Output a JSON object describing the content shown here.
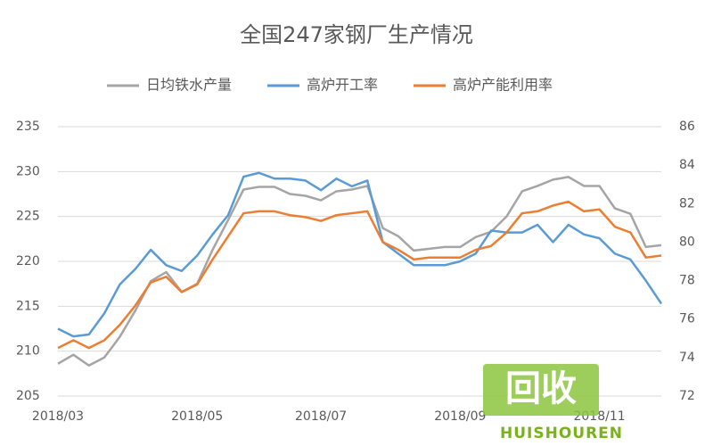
{
  "chart_data": {
    "type": "line",
    "title": "全国247家钢厂生产情况",
    "categories": [
      "2018/03",
      null,
      null,
      null,
      null,
      null,
      null,
      null,
      null,
      "2018/05",
      null,
      null,
      null,
      null,
      null,
      null,
      null,
      "2018/07",
      null,
      null,
      null,
      null,
      null,
      null,
      null,
      null,
      "2018/09",
      null,
      null,
      null,
      null,
      null,
      null,
      null,
      null,
      "2018/11",
      null,
      null,
      null,
      null
    ],
    "ylim": [
      205,
      235
    ],
    "yticks": [
      205,
      210,
      215,
      220,
      225,
      230,
      235
    ],
    "y2lim": [
      72,
      86
    ],
    "y2ticks": [
      72,
      74,
      76,
      78,
      80,
      82,
      84,
      86
    ],
    "grid": true,
    "legend": "top",
    "series": [
      {
        "name": "日均铁水产量",
        "color": "#a5a5a5",
        "values": [
          208.6,
          209.6,
          208.4,
          209.3,
          211.6,
          214.5,
          217.8,
          218.8,
          216.6,
          217.5,
          221.3,
          224.6,
          228.0,
          228.3,
          228.3,
          227.5,
          227.3,
          226.8,
          227.8,
          228.0,
          228.4,
          223.7,
          222.8,
          221.2,
          221.4,
          221.6,
          221.6,
          222.7,
          223.3,
          225.0,
          227.8,
          228.4,
          229.1,
          229.4,
          228.4,
          228.4,
          225.9,
          225.3,
          221.6,
          221.8
        ]
      },
      {
        "name": "高炉开工率",
        "color": "#5b9bd5",
        "axis": "y2",
        "values": [
          75.5,
          75.1,
          75.2,
          76.3,
          77.8,
          78.6,
          79.6,
          78.8,
          78.5,
          79.3,
          80.4,
          81.4,
          83.4,
          83.6,
          83.3,
          83.3,
          83.2,
          82.7,
          83.3,
          82.9,
          83.2,
          80.0,
          79.4,
          78.8,
          78.8,
          78.8,
          79.0,
          79.4,
          80.6,
          80.5,
          80.5,
          80.9,
          80.0,
          80.9,
          80.4,
          80.2,
          79.4,
          79.1,
          78.0,
          76.8
        ]
      },
      {
        "name": "高炉产能利用率",
        "color": "#ed7d31",
        "axis": "y2",
        "values": [
          74.5,
          74.9,
          74.5,
          74.9,
          75.7,
          76.7,
          77.9,
          78.2,
          77.4,
          77.8,
          79.1,
          80.3,
          81.5,
          81.6,
          81.6,
          81.4,
          81.3,
          81.1,
          81.4,
          81.5,
          81.6,
          80.0,
          79.6,
          79.1,
          79.2,
          79.2,
          79.2,
          79.6,
          79.8,
          80.5,
          81.5,
          81.6,
          81.9,
          82.1,
          81.6,
          81.7,
          80.8,
          80.5,
          79.2,
          79.3
        ]
      }
    ]
  },
  "watermark": {
    "main": "回收",
    "sub": "HUISHOUREN"
  }
}
